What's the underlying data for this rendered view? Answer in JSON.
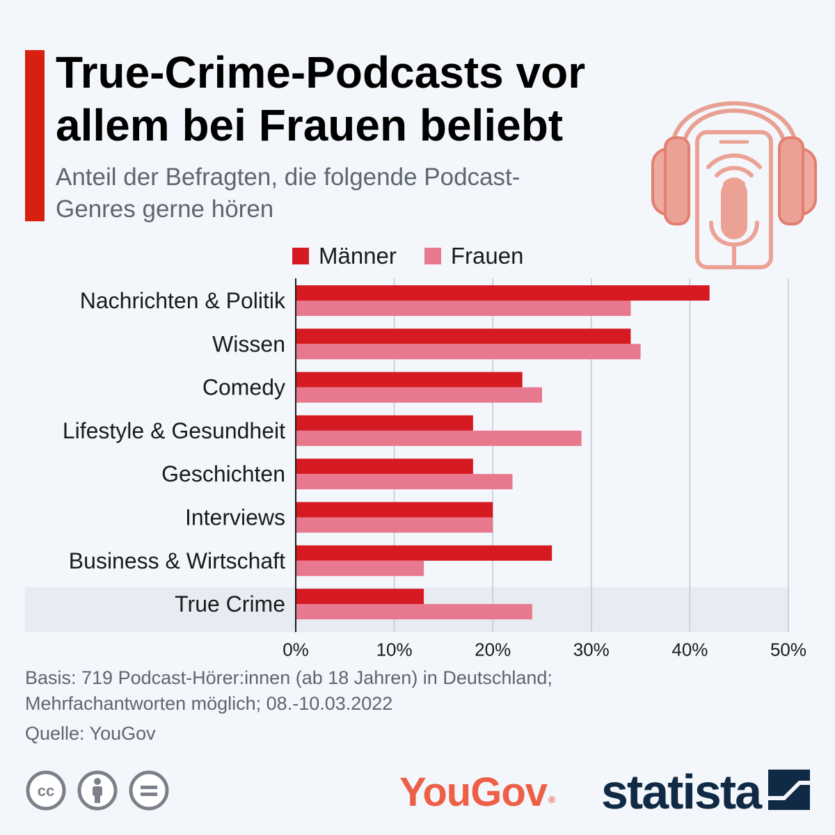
{
  "title": "True-Crime-Podcasts vor allem bei Frauen beliebt",
  "subtitle": "Anteil der Befragten, die folgende Podcast-Genres gerne hören",
  "footnote": "Basis: 719 Podcast-Hörer:innen (ab 18 Jahren) in Deutschland; Mehrfachantworten möglich; 08.-10.03.2022",
  "source": "Quelle: YouGov",
  "logos": {
    "yougov": "YouGov",
    "statista": "statista"
  },
  "icons": [
    "headphones-podcast-icon",
    "cc-icon",
    "attribution-icon",
    "no-derivatives-icon",
    "statista-mark-icon"
  ],
  "colors": {
    "accent": "#d8200f",
    "maenner": "#d61a22",
    "frauen": "#e8788d",
    "highlight_row": "#e7ebf2",
    "yougov": "#ee5f48",
    "statista": "#102a45"
  },
  "chart_data": {
    "type": "bar",
    "orientation": "horizontal",
    "categories": [
      "Nachrichten & Politik",
      "Wissen",
      "Comedy",
      "Lifestyle & Gesundheit",
      "Geschichten",
      "Interviews",
      "Business & Wirtschaft",
      "True Crime"
    ],
    "series": [
      {
        "name": "Männer",
        "color": "#d61a22",
        "values": [
          42,
          34,
          23,
          18,
          18,
          20,
          26,
          13
        ]
      },
      {
        "name": "Frauen",
        "color": "#e8788d",
        "values": [
          34,
          35,
          25,
          29,
          22,
          20,
          13,
          24
        ]
      }
    ],
    "xlim": [
      0,
      50
    ],
    "xticks": [
      "0%",
      "10%",
      "20%",
      "30%",
      "40%",
      "50%"
    ],
    "xlabel": "",
    "ylabel": "",
    "grid": true,
    "legend": "top",
    "highlighted_category": "True Crime"
  }
}
